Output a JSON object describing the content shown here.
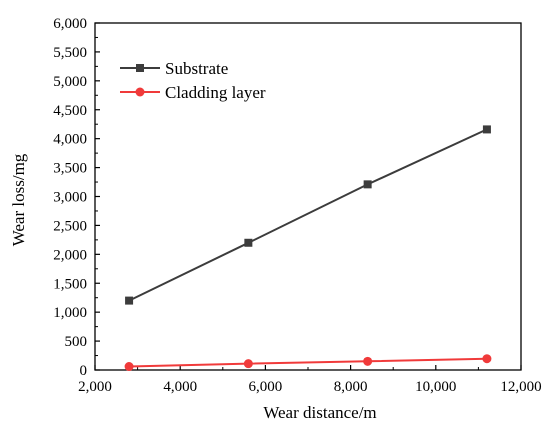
{
  "chart_data": {
    "type": "line",
    "title": "",
    "xlabel": "Wear distance/m",
    "ylabel": "Wear loss/mg",
    "xlim": [
      2000,
      12000
    ],
    "ylim": [
      0,
      6000
    ],
    "x_ticks": [
      2000,
      4000,
      6000,
      8000,
      10000,
      12000
    ],
    "y_ticks": [
      0,
      500,
      1000,
      1500,
      2000,
      2500,
      3000,
      3500,
      4000,
      4500,
      5000,
      5500,
      6000
    ],
    "x_tick_labels": [
      "2,000",
      "4,000",
      "6,000",
      "8,000",
      "10,000",
      "12,000"
    ],
    "y_tick_labels": [
      "0",
      "500",
      "1,000",
      "1,500",
      "2,000",
      "2,500",
      "3,000",
      "3,500",
      "4,000",
      "4,500",
      "5,000",
      "5,500",
      "6,000"
    ],
    "grid": false,
    "legend_position": "top-left",
    "series": [
      {
        "name": "Substrate",
        "marker": "square",
        "color": "#3c3c3c",
        "x": [
          2800,
          5600,
          8400,
          11200
        ],
        "y": [
          1200,
          2200,
          3210,
          4160
        ]
      },
      {
        "name": "Cladding layer",
        "marker": "circle",
        "color": "#f03a3a",
        "x": [
          2800,
          5600,
          8400,
          11200
        ],
        "y": [
          60,
          110,
          150,
          195
        ]
      }
    ]
  }
}
